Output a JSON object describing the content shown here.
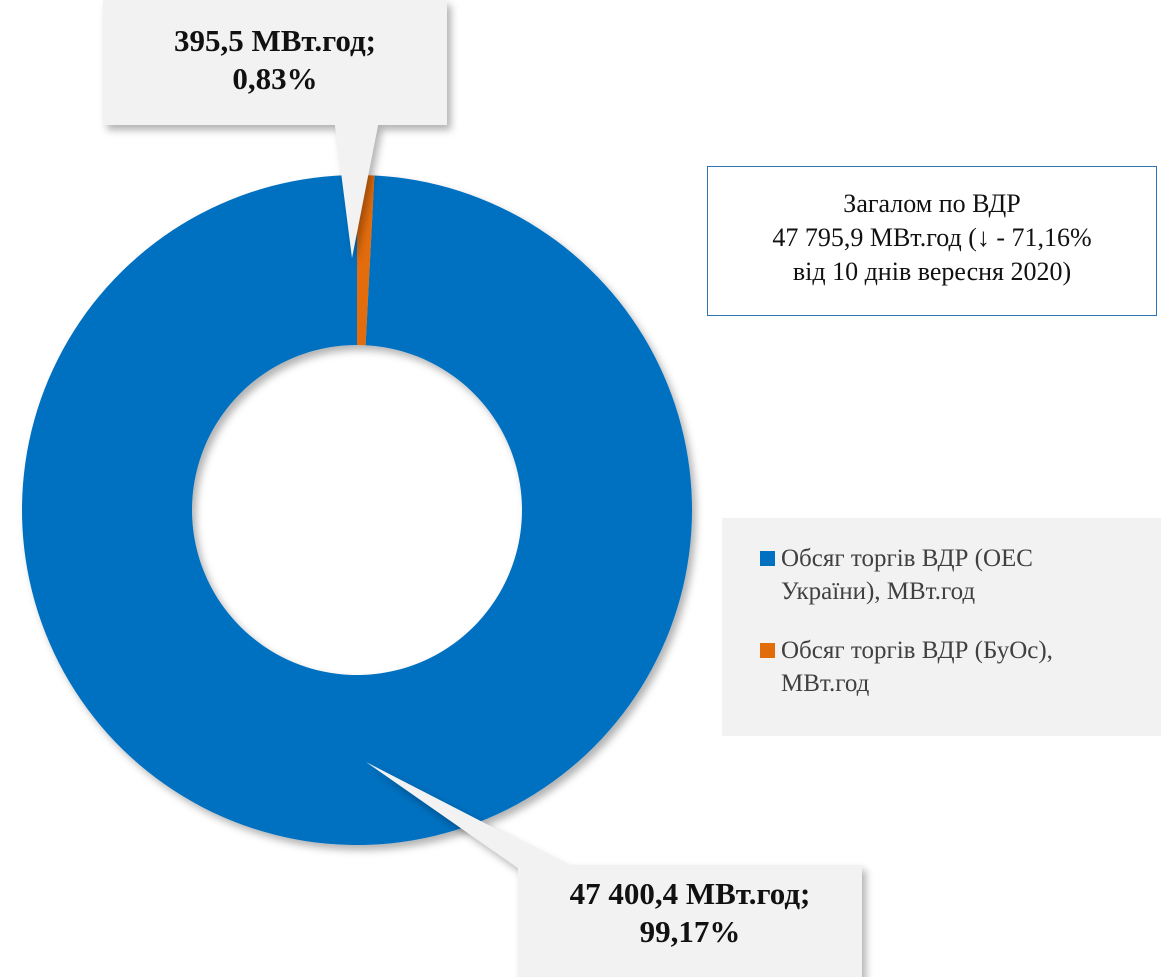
{
  "chart_data": {
    "type": "pie",
    "donut": true,
    "categories": [
      "Обсяг торгів ВДР (ОЕС України), МВт.год",
      "Обсяг торгів ВДР (БуОс), МВт.год"
    ],
    "values": [
      47400.4,
      395.5
    ],
    "colors": [
      "#0070c0",
      "#e36c0a"
    ],
    "data_labels": [
      {
        "line1": "47 400,4 МВт.год;",
        "line2": "99,17%"
      },
      {
        "line1": "395,5 МВт.год;",
        "line2": "0,83%"
      }
    ],
    "legend_position": "right",
    "title": ""
  },
  "summary": {
    "line1": "Загалом по ВДР",
    "line2": "47 795,9 МВт.год (↓ - 71,16%",
    "line3": "від 10 днів вересня 2020)"
  }
}
